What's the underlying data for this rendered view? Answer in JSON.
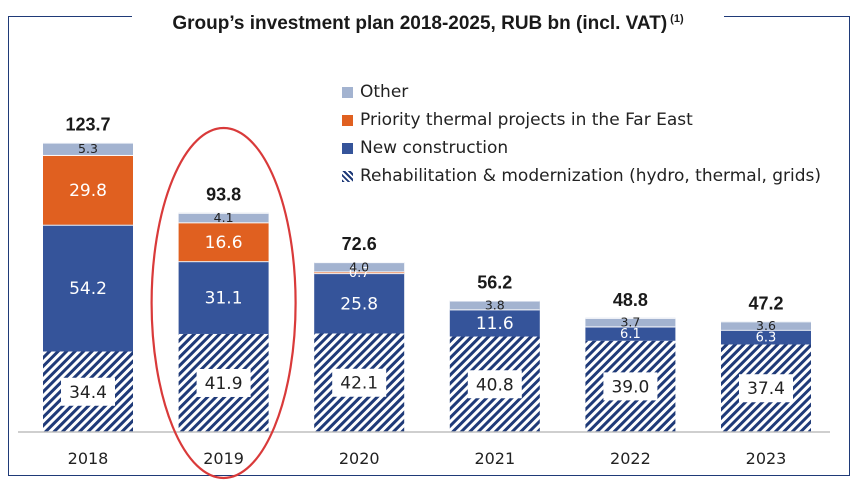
{
  "title": "Group’s investment plan 2018-2025, RUB bn (incl. VAT)",
  "title_note": "(1)",
  "colors": {
    "other": "#a3b3d0",
    "far_east": "#e06020",
    "new_construction": "#35549a",
    "rehab": "#1f3a78",
    "highlight": "#d93a3a",
    "axis": "#bfbfbf"
  },
  "chart_data": {
    "type": "bar",
    "stacked": true,
    "categories": [
      "2018",
      "2019",
      "2020",
      "2021",
      "2022",
      "2023"
    ],
    "totals": [
      "123.7",
      "93.8",
      "72.6",
      "56.2",
      "48.8",
      "47.2"
    ],
    "series": [
      {
        "name": "Rehabilitation & modernization (hydro, thermal, grids)",
        "key": "rehab",
        "values": [
          34.4,
          41.9,
          42.1,
          40.8,
          39.0,
          37.4
        ],
        "labels": [
          "34.4",
          "41.9",
          "42.1",
          "40.8",
          "39.0",
          "37.4"
        ]
      },
      {
        "name": "New construction",
        "key": "new_construction",
        "values": [
          54.2,
          31.1,
          25.8,
          11.6,
          6.1,
          6.3
        ],
        "labels": [
          "54.2",
          "31.1",
          "25.8",
          "11.6",
          "6.1",
          "6.3"
        ]
      },
      {
        "name": "Priority thermal projects in the Far East",
        "key": "far_east",
        "values": [
          29.8,
          16.6,
          0.7,
          0,
          0,
          0
        ],
        "labels": [
          "29.8",
          "16.6",
          "0.7",
          "",
          "",
          ""
        ]
      },
      {
        "name": "Other",
        "key": "other",
        "values": [
          5.3,
          4.1,
          4.0,
          3.8,
          3.7,
          3.6
        ],
        "labels": [
          "5.3",
          "4.1",
          "4.0",
          "3.8",
          "3.7",
          "3.6"
        ]
      }
    ],
    "legend_order": [
      "other",
      "far_east",
      "new_construction",
      "rehab"
    ],
    "legend_position": "top-right",
    "highlighted_category": "2019",
    "grid": false,
    "ylim": [
      0,
      130
    ]
  }
}
